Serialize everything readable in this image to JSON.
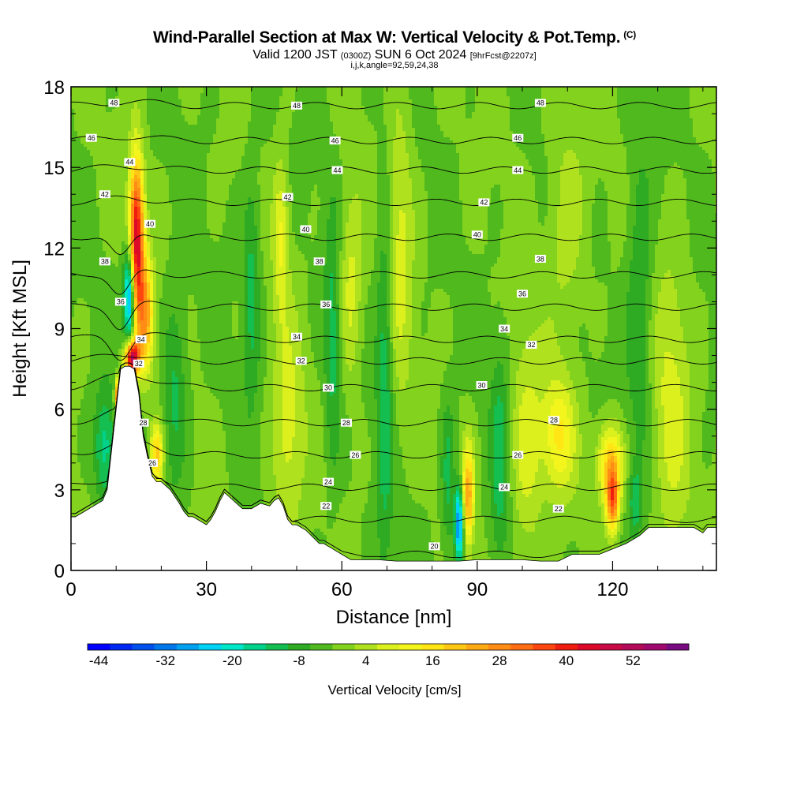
{
  "header": {
    "title": "Wind-Parallel Section at Max W: Vertical Velocity & Pot.Temp.",
    "title_mark": "(C)",
    "valid_prefix": "Valid 1200 JST",
    "valid_utc": "(0300Z)",
    "valid_date": "SUN 6 Oct 2024",
    "forecast_info": "[9hrFcst@2207z]",
    "indices": "i,j,k,angle=92,59,24,38"
  },
  "chart_data": {
    "type": "heatmap",
    "xlabel": "Distance [nm]",
    "ylabel": "Height [Kft MSL]",
    "xlim": [
      0,
      143
    ],
    "ylim": [
      0,
      18
    ],
    "xticks": [
      "0",
      "30",
      "60",
      "90",
      "120"
    ],
    "yticks": [
      "0",
      "3",
      "6",
      "9",
      "12",
      "15",
      "18"
    ],
    "terrain": {
      "x": [
        0,
        1,
        3,
        5,
        7,
        8,
        9,
        10,
        11,
        12,
        13,
        14,
        15,
        16,
        17,
        18,
        19,
        20,
        22,
        24,
        25,
        26,
        27,
        30,
        31,
        32,
        33,
        34,
        36,
        38,
        40,
        42,
        44,
        45,
        46,
        47,
        48,
        49,
        50,
        52,
        55,
        56,
        58,
        60,
        62,
        65,
        68,
        72,
        75,
        78,
        82,
        86,
        90,
        95,
        100,
        104,
        108,
        111,
        114,
        117,
        120,
        123,
        126,
        128,
        130,
        132,
        136,
        138,
        140,
        141,
        143
      ],
      "height": [
        2.0,
        2.0,
        2.2,
        2.4,
        2.6,
        3.0,
        4.5,
        6.0,
        7.5,
        7.6,
        7.6,
        7.5,
        6.6,
        5.0,
        4.2,
        3.5,
        3.3,
        3.3,
        3.0,
        2.5,
        2.2,
        2.0,
        2.0,
        1.7,
        1.9,
        2.2,
        2.6,
        2.9,
        2.6,
        2.3,
        2.3,
        2.5,
        2.4,
        2.6,
        2.7,
        2.4,
        1.9,
        1.7,
        1.7,
        1.5,
        1.0,
        1.0,
        0.8,
        0.6,
        0.4,
        0.4,
        0.4,
        0.35,
        0.35,
        0.35,
        0.35,
        0.35,
        0.4,
        0.4,
        0.4,
        0.35,
        0.35,
        0.6,
        0.6,
        0.6,
        0.8,
        1.0,
        1.3,
        1.6,
        1.6,
        1.6,
        1.6,
        1.6,
        1.4,
        1.6,
        1.6
      ]
    },
    "theta_contours_c": [
      20,
      22,
      24,
      26,
      28,
      30,
      32,
      34,
      36,
      38,
      40,
      42,
      44,
      46,
      48
    ],
    "theta_base_height": [
      0.6,
      1.9,
      3.1,
      4.3,
      5.5,
      6.8,
      7.8,
      8.6,
      9.8,
      11.0,
      12.4,
      13.7,
      14.9,
      16.0,
      17.3
    ],
    "theta_labels": [
      {
        "text": "20",
        "x": 80.5,
        "y": 0.9
      },
      {
        "text": "22",
        "x": 56.5,
        "y": 2.4
      },
      {
        "text": "22",
        "x": 108,
        "y": 2.3
      },
      {
        "text": "24",
        "x": 57,
        "y": 3.3
      },
      {
        "text": "24",
        "x": 96,
        "y": 3.1
      },
      {
        "text": "26",
        "x": 18,
        "y": 4.0
      },
      {
        "text": "26",
        "x": 63,
        "y": 4.3
      },
      {
        "text": "26",
        "x": 99,
        "y": 4.3
      },
      {
        "text": "28",
        "x": 16,
        "y": 5.5
      },
      {
        "text": "28",
        "x": 61,
        "y": 5.5
      },
      {
        "text": "28",
        "x": 107,
        "y": 5.6
      },
      {
        "text": "30",
        "x": 57,
        "y": 6.8
      },
      {
        "text": "30",
        "x": 91,
        "y": 6.9
      },
      {
        "text": "32",
        "x": 15,
        "y": 7.7
      },
      {
        "text": "32",
        "x": 51,
        "y": 7.8
      },
      {
        "text": "32",
        "x": 102,
        "y": 8.4
      },
      {
        "text": "34",
        "x": 15.5,
        "y": 8.6
      },
      {
        "text": "34",
        "x": 50,
        "y": 8.7
      },
      {
        "text": "34",
        "x": 96,
        "y": 9.0
      },
      {
        "text": "36",
        "x": 11,
        "y": 10.0
      },
      {
        "text": "36",
        "x": 56.5,
        "y": 9.9
      },
      {
        "text": "36",
        "x": 100,
        "y": 10.3
      },
      {
        "text": "38",
        "x": 7.5,
        "y": 11.5
      },
      {
        "text": "38",
        "x": 55,
        "y": 11.5
      },
      {
        "text": "38",
        "x": 104,
        "y": 11.6
      },
      {
        "text": "40",
        "x": 17.5,
        "y": 12.9
      },
      {
        "text": "40",
        "x": 52,
        "y": 12.7
      },
      {
        "text": "40",
        "x": 90,
        "y": 12.5
      },
      {
        "text": "42",
        "x": 7.5,
        "y": 14.0
      },
      {
        "text": "42",
        "x": 48,
        "y": 13.9
      },
      {
        "text": "42",
        "x": 91.5,
        "y": 13.7
      },
      {
        "text": "44",
        "x": 13,
        "y": 15.2
      },
      {
        "text": "44",
        "x": 59,
        "y": 14.9
      },
      {
        "text": "44",
        "x": 99,
        "y": 14.9
      },
      {
        "text": "46",
        "x": 4.5,
        "y": 16.1
      },
      {
        "text": "46",
        "x": 58.5,
        "y": 16.0
      },
      {
        "text": "46",
        "x": 99,
        "y": 16.1
      },
      {
        "text": "48",
        "x": 9.5,
        "y": 17.4
      },
      {
        "text": "48",
        "x": 50,
        "y": 17.3
      },
      {
        "text": "48",
        "x": 104,
        "y": 17.4
      }
    ],
    "w_features": [
      {
        "x": 14.5,
        "y": 12.3,
        "amp": 48,
        "sx": 1.1,
        "sy": 2.1
      },
      {
        "x": 16.5,
        "y": 9.5,
        "amp": 26,
        "sx": 1.3,
        "sy": 1.5
      },
      {
        "x": 13.0,
        "y": 10.2,
        "amp": -34,
        "sx": 0.9,
        "sy": 1.2
      },
      {
        "x": 13.5,
        "y": 7.9,
        "amp": 52,
        "sx": 1.1,
        "sy": 0.45
      },
      {
        "x": 10.5,
        "y": 6.4,
        "amp": 40,
        "sx": 0.5,
        "sy": 0.5
      },
      {
        "x": 19.0,
        "y": 4.3,
        "amp": 22,
        "sx": 1.0,
        "sy": 0.8
      },
      {
        "x": 7.5,
        "y": 4.5,
        "amp": -14,
        "sx": 1.6,
        "sy": 1.5
      },
      {
        "x": 23.0,
        "y": 6.5,
        "amp": -10,
        "sx": 1.8,
        "sy": 2.5
      },
      {
        "x": 46.5,
        "y": 12.5,
        "amp": 12,
        "sx": 1.2,
        "sy": 2.0
      },
      {
        "x": 40.0,
        "y": 10.5,
        "amp": -10,
        "sx": 1.3,
        "sy": 3.0
      },
      {
        "x": 48.0,
        "y": 5.0,
        "amp": 10,
        "sx": 2.5,
        "sy": 3.0
      },
      {
        "x": 58.0,
        "y": 8.5,
        "amp": -10,
        "sx": 1.3,
        "sy": 3.5
      },
      {
        "x": 62.0,
        "y": 10.5,
        "amp": 10,
        "sx": 1.8,
        "sy": 2.5
      },
      {
        "x": 69.5,
        "y": 7.0,
        "amp": -11,
        "sx": 1.3,
        "sy": 5.0
      },
      {
        "x": 73.0,
        "y": 12.0,
        "amp": 9,
        "sx": 2.0,
        "sy": 4.0
      },
      {
        "x": 88.0,
        "y": 2.8,
        "amp": 26,
        "sx": 0.9,
        "sy": 1.3
      },
      {
        "x": 86.0,
        "y": 1.7,
        "amp": -32,
        "sx": 0.7,
        "sy": 1.0
      },
      {
        "x": 83.5,
        "y": 3.5,
        "amp": -10,
        "sx": 1.0,
        "sy": 2.0
      },
      {
        "x": 95.0,
        "y": 4.0,
        "amp": -10,
        "sx": 1.5,
        "sy": 3.0
      },
      {
        "x": 101.0,
        "y": 4.5,
        "amp": 10,
        "sx": 2.5,
        "sy": 3.0
      },
      {
        "x": 108.0,
        "y": 5.0,
        "amp": 16,
        "sx": 2.5,
        "sy": 1.5
      },
      {
        "x": 119.5,
        "y": 4.0,
        "amp": 22,
        "sx": 2.0,
        "sy": 1.0
      },
      {
        "x": 120.0,
        "y": 2.6,
        "amp": 32,
        "sx": 1.0,
        "sy": 0.8
      },
      {
        "x": 125.0,
        "y": 2.6,
        "amp": -10,
        "sx": 1.0,
        "sy": 0.9
      },
      {
        "x": 126.0,
        "y": 10.0,
        "amp": -9,
        "sx": 2.0,
        "sy": 4.0
      },
      {
        "x": 133.0,
        "y": 6.0,
        "amp": 9,
        "sx": 3.0,
        "sy": 4.0
      },
      {
        "x": 110.0,
        "y": 13.0,
        "amp": 7,
        "sx": 3.0,
        "sy": 3.0
      }
    ],
    "colorbar": {
      "label": "Vertical Velocity [cm/s]",
      "ticks": [
        "-44",
        "-32",
        "-20",
        "-8",
        "4",
        "16",
        "28",
        "40",
        "52"
      ],
      "boundaries": [
        -44,
        -40,
        -36,
        -32,
        -28,
        -24,
        -20,
        -16,
        -12,
        -8,
        -4,
        0,
        4,
        8,
        12,
        16,
        20,
        24,
        28,
        32,
        36,
        40,
        44,
        48,
        52,
        56,
        60
      ],
      "colors": [
        "#0000ff",
        "#0028f5",
        "#0050eb",
        "#0078eb",
        "#00a0f0",
        "#00d2f5",
        "#00e6c8",
        "#00d28c",
        "#14be50",
        "#2eaa23",
        "#50b91e",
        "#82d21e",
        "#afe11e",
        "#dcf01e",
        "#f5f51e",
        "#ffe614",
        "#ffc814",
        "#ffaa14",
        "#ff8c14",
        "#ff6e14",
        "#ff460f",
        "#f01e0f",
        "#dc0a28",
        "#c80a46",
        "#b40a5a",
        "#a00a6e",
        "#780a82"
      ]
    }
  }
}
